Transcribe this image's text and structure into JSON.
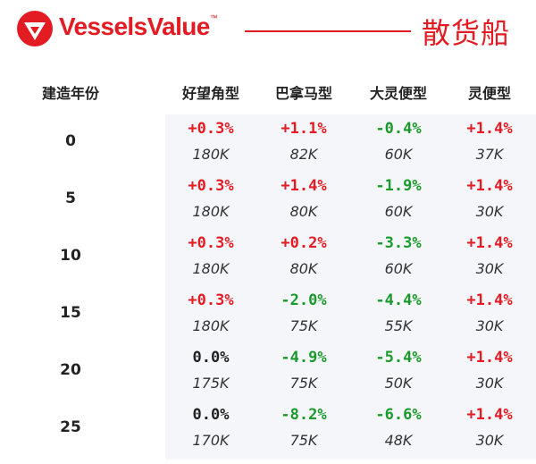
{
  "brand": {
    "name": "VesselsValue",
    "trademark": "™",
    "category": "散货船",
    "accent_color": "#e31b23"
  },
  "columns": {
    "age_header": "建造年份",
    "vessel_types": [
      "好望角型",
      "巴拿马型",
      "大灵便型",
      "灵便型"
    ]
  },
  "rows": [
    {
      "age": "0",
      "cells": [
        {
          "pct": "+0.3%",
          "value": "180K"
        },
        {
          "pct": "+1.1%",
          "value": "82K"
        },
        {
          "pct": "-0.4%",
          "value": "60K"
        },
        {
          "pct": "+1.4%",
          "value": "37K"
        }
      ]
    },
    {
      "age": "5",
      "cells": [
        {
          "pct": "+0.3%",
          "value": "180K"
        },
        {
          "pct": "+1.4%",
          "value": "80K"
        },
        {
          "pct": "-1.9%",
          "value": "60K"
        },
        {
          "pct": "+1.4%",
          "value": "30K"
        }
      ]
    },
    {
      "age": "10",
      "cells": [
        {
          "pct": "+0.3%",
          "value": "180K"
        },
        {
          "pct": "+0.2%",
          "value": "80K"
        },
        {
          "pct": "-3.3%",
          "value": "60K"
        },
        {
          "pct": "+1.4%",
          "value": "30K"
        }
      ]
    },
    {
      "age": "15",
      "cells": [
        {
          "pct": "+0.3%",
          "value": "180K"
        },
        {
          "pct": "-2.0%",
          "value": "75K"
        },
        {
          "pct": "-4.4%",
          "value": "55K"
        },
        {
          "pct": "+1.4%",
          "value": "30K"
        }
      ]
    },
    {
      "age": "20",
      "cells": [
        {
          "pct": "0.0%",
          "value": "175K"
        },
        {
          "pct": "-4.9%",
          "value": "75K"
        },
        {
          "pct": "-5.4%",
          "value": "50K"
        },
        {
          "pct": "+1.4%",
          "value": "30K"
        }
      ]
    },
    {
      "age": "25",
      "cells": [
        {
          "pct": "0.0%",
          "value": "170K"
        },
        {
          "pct": "-8.2%",
          "value": "75K"
        },
        {
          "pct": "-6.6%",
          "value": "48K"
        },
        {
          "pct": "+1.4%",
          "value": "30K"
        }
      ]
    }
  ],
  "colors": {
    "increase": "#e31b23",
    "decrease": "#1a9a2c",
    "unchanged": "#222222"
  }
}
